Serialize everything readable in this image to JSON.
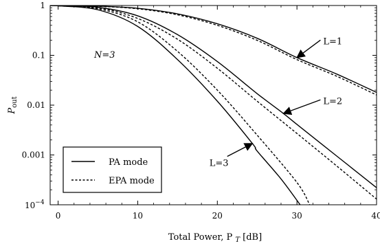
{
  "chart_data": {
    "type": "line",
    "title": "",
    "xlabel": "Total Power, P",
    "xlabel_sub": "T",
    "xlabel_unit": " [dB]",
    "ylabel": "P",
    "ylabel_sub": "out",
    "xlim": [
      -1,
      40
    ],
    "ylim": [
      0.0001,
      1
    ],
    "yscale": "log",
    "grid": false,
    "legend_position": "bottom-left",
    "x_ticks": [
      {
        "value": 0,
        "label": "0"
      },
      {
        "value": 10,
        "label": "10"
      },
      {
        "value": 20,
        "label": "20"
      },
      {
        "value": 30,
        "label": "30"
      },
      {
        "value": 40,
        "label": "40"
      }
    ],
    "y_ticks": [
      {
        "value": 1,
        "label": "1"
      },
      {
        "value": 0.1,
        "label": "0.1"
      },
      {
        "value": 0.01,
        "label": "0.01"
      },
      {
        "value": 0.001,
        "label": "0.001"
      }
    ],
    "y_min_label": {
      "base": "10",
      "exp": "−4"
    },
    "legend": [
      {
        "label": "PA mode",
        "style": "solid"
      },
      {
        "label": "EPA mode",
        "style": "dashed"
      }
    ],
    "annotations": {
      "n_label": "N=3",
      "curves": [
        {
          "label": "L=1",
          "at": [
            30,
            0.09
          ],
          "text_at": [
            33.3,
            0.19
          ]
        },
        {
          "label": "L=2",
          "at": [
            28.3,
            0.0068
          ],
          "text_at": [
            33.3,
            0.012
          ]
        },
        {
          "label": "L=3",
          "at": [
            24.4,
            0.0017
          ],
          "text_at": [
            19,
            0.00068
          ]
        }
      ]
    },
    "series": [
      {
        "name": "PA mode",
        "group": "L=1",
        "style": "solid",
        "x": [
          -1,
          0,
          5,
          10,
          15,
          20,
          25,
          30,
          35,
          40
        ],
        "y": [
          1.0,
          0.995,
          0.97,
          0.88,
          0.68,
          0.43,
          0.22,
          0.09,
          0.042,
          0.018
        ]
      },
      {
        "name": "EPA mode",
        "group": "L=1",
        "style": "dashed",
        "x": [
          -1,
          0,
          5,
          10,
          15,
          20,
          25,
          30,
          35,
          40
        ],
        "y": [
          1.0,
          0.995,
          0.965,
          0.86,
          0.65,
          0.4,
          0.2,
          0.082,
          0.038,
          0.016
        ]
      },
      {
        "name": "PA mode",
        "group": "L=2",
        "style": "solid",
        "x": [
          -1,
          0,
          5,
          10,
          15,
          20,
          25,
          28.3,
          30,
          35,
          40
        ],
        "y": [
          1.0,
          0.99,
          0.92,
          0.62,
          0.26,
          0.075,
          0.017,
          0.0068,
          0.0041,
          0.00095,
          0.00022
        ]
      },
      {
        "name": "EPA mode",
        "group": "L=2",
        "style": "dashed",
        "x": [
          -1,
          0,
          5,
          10,
          15,
          20,
          25,
          30,
          35,
          40
        ],
        "y": [
          1.0,
          0.99,
          0.9,
          0.55,
          0.21,
          0.055,
          0.012,
          0.0027,
          0.0006,
          0.00013
        ]
      },
      {
        "name": "PA mode",
        "group": "L=3",
        "style": "solid",
        "x": [
          -1,
          0,
          5,
          10,
          15,
          20,
          24.4,
          25,
          28,
          30.4
        ],
        "y": [
          1.0,
          0.985,
          0.82,
          0.38,
          0.082,
          0.012,
          0.0017,
          0.0012,
          0.00033,
          0.0001
        ]
      },
      {
        "name": "EPA mode",
        "group": "L=3",
        "style": "dashed",
        "x": [
          -1,
          0,
          5,
          10,
          15,
          20,
          25,
          30,
          31.6
        ],
        "y": [
          1.0,
          0.985,
          0.86,
          0.47,
          0.12,
          0.02,
          0.0025,
          0.00028,
          0.0001
        ]
      }
    ]
  }
}
